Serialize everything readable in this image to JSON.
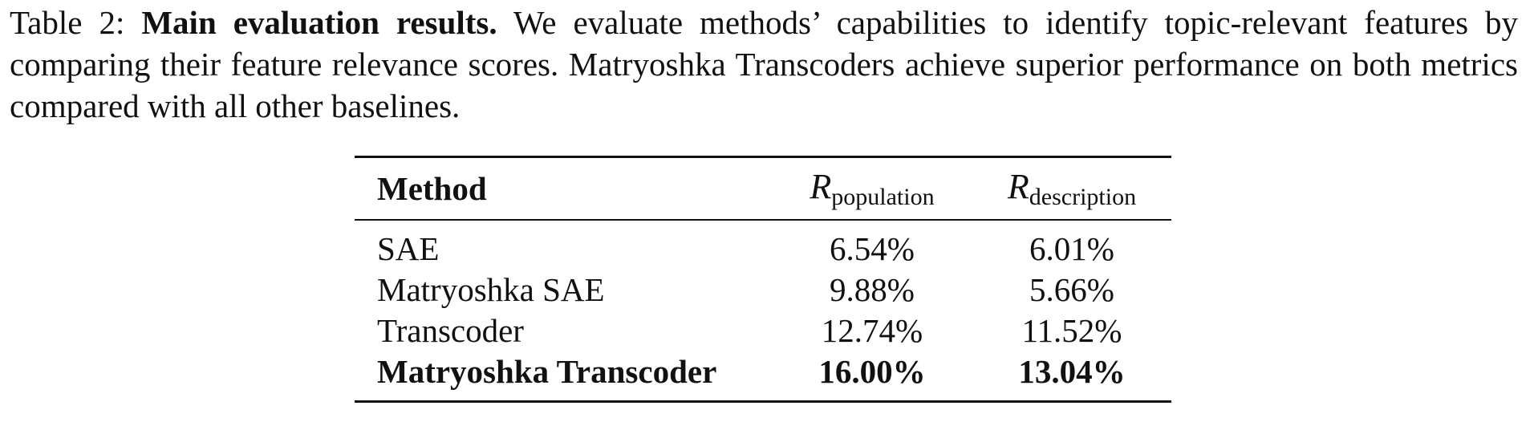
{
  "caption": {
    "label": "Table 2:",
    "title": "Main evaluation results.",
    "text": "We evaluate methods’ capabilities to identify topic-relevant features by comparing their feature relevance scores. Matryoshka Transcoders achieve superior performance on both metrics compared with all other baselines."
  },
  "table": {
    "header": [
      "Method",
      {
        "symbol": "R",
        "subscript": "population"
      },
      {
        "symbol": "R",
        "subscript": "description"
      }
    ],
    "rows": [
      [
        "SAE",
        "6.54%",
        "6.01%"
      ],
      [
        "Matryoshka SAE",
        "9.88%",
        "5.66%"
      ],
      [
        "Transcoder",
        "12.74%",
        "11.52%"
      ],
      [
        "Matryoshka Transcoder",
        "16.00%",
        "13.04%"
      ]
    ]
  }
}
